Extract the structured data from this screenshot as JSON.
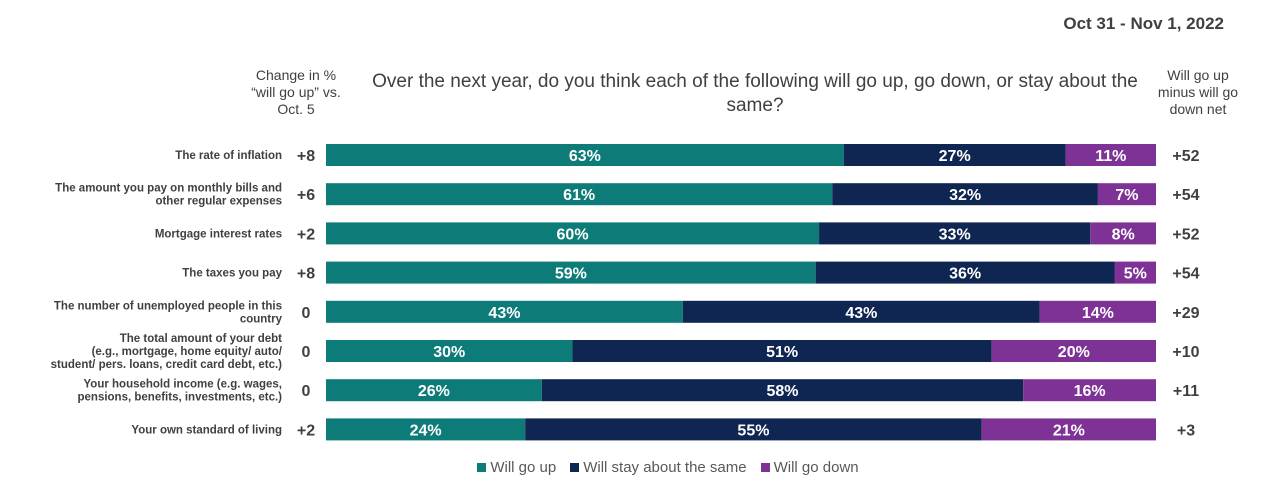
{
  "date_range": "Oct 31 - Nov 1, 2022",
  "title": "Over the next year, do you think each of the following will go up, go down, or stay about the same?",
  "change_header": [
    "Change in %",
    "“will go up” vs.",
    "Oct. 5"
  ],
  "net_header": [
    "Will go up",
    "minus will go",
    "down net"
  ],
  "colors": {
    "up": "#0D7B77",
    "same": "#0F2552",
    "down": "#7E3295"
  },
  "chart_data": {
    "type": "bar",
    "orientation": "horizontal",
    "stacked": true,
    "title": "Over the next year, do you think each of the following will go up, go down, or stay about the same?",
    "categories": [
      {
        "lines": [
          "The rate of inflation"
        ]
      },
      {
        "lines": [
          "The amount you pay on monthly bills and",
          "other regular expenses"
        ]
      },
      {
        "lines": [
          "Mortgage interest rates"
        ]
      },
      {
        "lines": [
          "The taxes you pay"
        ]
      },
      {
        "lines": [
          "The number of unemployed people in this",
          "country"
        ]
      },
      {
        "lines": [
          "The total amount of your debt",
          "(e.g., mortgage, home equity/ auto/",
          "student/ pers. loans, credit card debt, etc.)"
        ]
      },
      {
        "lines": [
          "Your household income (e.g. wages,",
          "pensions, benefits, investments, etc.)"
        ]
      },
      {
        "lines": [
          "Your own standard of living"
        ]
      }
    ],
    "series": [
      {
        "name": "Will go up",
        "key": "up",
        "values": [
          63,
          61,
          60,
          59,
          43,
          30,
          26,
          24
        ]
      },
      {
        "name": "Will stay about the same",
        "key": "same",
        "values": [
          27,
          32,
          33,
          36,
          43,
          51,
          58,
          55
        ]
      },
      {
        "name": "Will go down",
        "key": "down",
        "values": [
          11,
          7,
          8,
          5,
          14,
          20,
          16,
          21
        ]
      }
    ],
    "change_vs_oct5": [
      "+8",
      "+6",
      "+2",
      "+8",
      "0",
      "0",
      "0",
      "+2"
    ],
    "net": [
      "+52",
      "+54",
      "+52",
      "+54",
      "+29",
      "+10",
      "+11",
      "+3"
    ],
    "legend": [
      "Will go up",
      "Will stay about the same",
      "Will go down"
    ],
    "legend_position": "bottom"
  }
}
